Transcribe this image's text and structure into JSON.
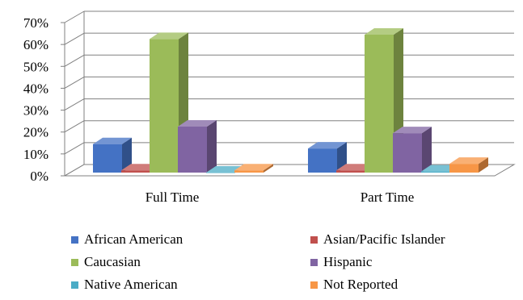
{
  "chart_data": {
    "type": "bar",
    "three_d": true,
    "categories": [
      "Full Time",
      "Part Time"
    ],
    "series": [
      {
        "name": "African American",
        "values": [
          13,
          11
        ],
        "color": "#4472C4"
      },
      {
        "name": "Asian/Pacific Islander",
        "values": [
          1,
          1
        ],
        "color": "#C0504D"
      },
      {
        "name": "Caucasian",
        "values": [
          61,
          63
        ],
        "color": "#9BBB59"
      },
      {
        "name": "Hispanic",
        "values": [
          21,
          18
        ],
        "color": "#8064A2"
      },
      {
        "name": "Native American",
        "values": [
          0,
          0.5
        ],
        "color": "#4BACC6"
      },
      {
        "name": "Not Reported",
        "values": [
          1,
          4
        ],
        "color": "#F79646"
      }
    ],
    "yticks": [
      "0%",
      "10%",
      "20%",
      "30%",
      "40%",
      "50%",
      "60%",
      "70%"
    ],
    "ylim": [
      0,
      70
    ],
    "grid": true,
    "legend_position": "bottom"
  }
}
